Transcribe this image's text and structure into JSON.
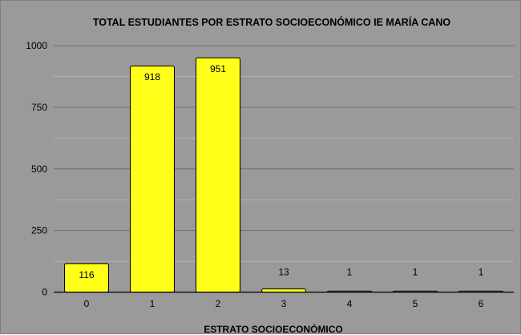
{
  "chart_data": {
    "type": "bar",
    "title": "TOTAL ESTUDIANTES POR ESTRATO SOCIOECONÓMICO IE MARÍA CANO",
    "xlabel": "ESTRATO SOCIOECONÓMICO",
    "ylabel": "",
    "categories": [
      "0",
      "1",
      "2",
      "3",
      "4",
      "5",
      "6"
    ],
    "values": [
      116,
      918,
      951,
      13,
      1,
      1,
      1
    ],
    "data_labels": [
      "116",
      "918",
      "951",
      "13",
      "1",
      "1",
      "1"
    ],
    "ylim": [
      0,
      1000
    ],
    "yticks": [
      0,
      250,
      500,
      750,
      1000
    ],
    "ytick_labels": [
      "0",
      "250",
      "500",
      "750",
      "1000"
    ],
    "minor_gridlines_at": [
      125,
      375,
      625,
      875
    ],
    "grid": true,
    "legend": "none",
    "colors": {
      "background": "#9a9a9a",
      "bar_fill": "#ffff1a",
      "bar_stroke": "#000000",
      "major_grid": "#6e6e6e",
      "minor_grid": "#b3b3b3",
      "axis": "#000000",
      "text": "#000000"
    }
  }
}
